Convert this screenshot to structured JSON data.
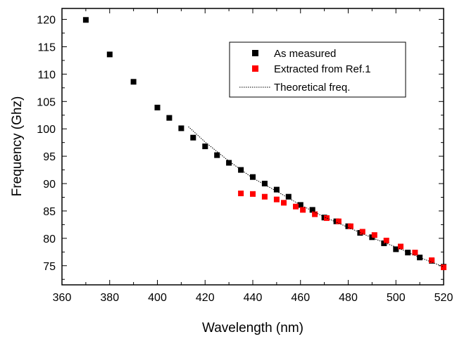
{
  "chart_data": {
    "type": "scatter",
    "xlabel": "Wavelength (nm)",
    "ylabel": "Frequency (Ghz)",
    "xlim": [
      360,
      520
    ],
    "ylim": [
      71.5,
      122
    ],
    "xticks": [
      360,
      380,
      400,
      420,
      440,
      460,
      480,
      500,
      520
    ],
    "yticks": [
      75,
      80,
      85,
      90,
      95,
      100,
      105,
      110,
      115,
      120
    ],
    "grid": false,
    "legend_position": "top-right",
    "series": [
      {
        "name": "As measured",
        "kind": "scatter",
        "marker": "square",
        "color": "#000000",
        "x": [
          370,
          380,
          390,
          400,
          405,
          410,
          415,
          420,
          425,
          430,
          435,
          440,
          445,
          450,
          455,
          460,
          465,
          470,
          475,
          480,
          485,
          490,
          495,
          500,
          505,
          510,
          515,
          520
        ],
        "y": [
          119.9,
          113.6,
          108.6,
          103.9,
          102.0,
          100.1,
          98.4,
          96.8,
          95.2,
          93.8,
          92.5,
          91.2,
          90.0,
          88.9,
          87.6,
          86.1,
          85.2,
          83.8,
          83.1,
          82.2,
          81.0,
          80.2,
          79.1,
          78.0,
          77.4,
          76.5,
          75.9,
          74.8
        ]
      },
      {
        "name": "Extracted from Ref.1",
        "kind": "scatter",
        "marker": "square",
        "color": "#ff0000",
        "x": [
          435,
          440,
          445,
          450,
          453,
          458,
          461,
          466,
          471,
          476,
          481,
          486,
          491,
          496,
          502,
          508,
          515,
          520
        ],
        "y": [
          88.2,
          88.1,
          87.6,
          87.1,
          86.5,
          85.8,
          85.2,
          84.4,
          83.7,
          83.1,
          82.2,
          81.2,
          80.6,
          79.6,
          78.5,
          77.4,
          76.0,
          74.7
        ]
      },
      {
        "name": "Theoretical freq.",
        "kind": "line",
        "style": "dotted",
        "color": "#000000",
        "x": [
          413,
          420,
          430,
          440,
          450,
          460,
          470,
          480,
          490,
          500,
          510,
          520
        ],
        "y": [
          100.4,
          97.6,
          94.1,
          91.0,
          88.6,
          86.1,
          83.9,
          82.0,
          80.1,
          78.4,
          76.5,
          74.8
        ]
      }
    ]
  }
}
